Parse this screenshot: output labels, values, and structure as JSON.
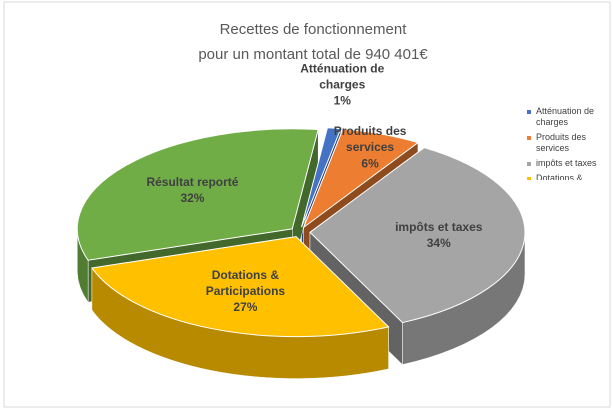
{
  "chart_data": {
    "type": "pie",
    "title": [
      "Recettes de fonctionnement",
      "pour  un  montant total de 940 401€"
    ],
    "categories": [
      "Atténuation de charges",
      "Produits des services",
      "impôts et taxes",
      "Dotations & Participations",
      "Résultat reporté"
    ],
    "values": [
      1,
      6,
      34,
      27,
      32
    ],
    "value_labels": [
      "1%",
      "6%",
      "34%",
      "27%",
      "32%"
    ],
    "colors": [
      "#4472c4",
      "#ed7d31",
      "#a5a5a5",
      "#ffc000",
      "#70ad47"
    ],
    "legend": "right",
    "three_d": true
  }
}
